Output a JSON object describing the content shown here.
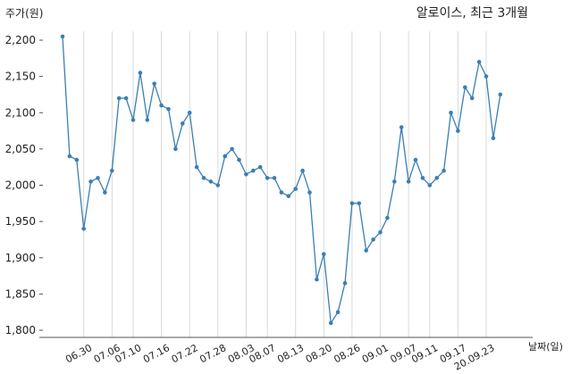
{
  "chart_data": {
    "type": "line",
    "title": "알로이스, 최근 3개월",
    "ylabel": "주가(원)",
    "xlabel": "날짜(일)",
    "ylim": [
      1800,
      2200
    ],
    "yticks": [
      1800,
      1850,
      1900,
      1950,
      2000,
      2050,
      2100,
      2150,
      2200
    ],
    "ytick_labels": [
      "1,800",
      "1,850",
      "1,900",
      "1,950",
      "2,000",
      "2,050",
      "2,100",
      "2,150",
      "2,200"
    ],
    "xtick_labels": [
      "06.30",
      "07.06",
      "07.10",
      "07.16",
      "07.22",
      "07.28",
      "08.03",
      "08.07",
      "08.13",
      "08.20",
      "08.26",
      "09.01",
      "09.07",
      "09.11",
      "09.17",
      "20.09.23"
    ],
    "xtick_indices": [
      3,
      7,
      10,
      14,
      18,
      22,
      26,
      29,
      33,
      37,
      41,
      45,
      49,
      52,
      56,
      60
    ],
    "grid": "vertical",
    "line_color": "#3a7fb5",
    "values": [
      2205,
      2040,
      2035,
      1940,
      2005,
      2010,
      1990,
      2020,
      2120,
      2120,
      2090,
      2155,
      2090,
      2140,
      2110,
      2105,
      2050,
      2085,
      2100,
      2025,
      2010,
      2005,
      2000,
      2040,
      2050,
      2035,
      2015,
      2020,
      2025,
      2010,
      2010,
      1990,
      1985,
      1995,
      2020,
      1990,
      1870,
      1905,
      1810,
      1825,
      1865,
      1975,
      1975,
      1910,
      1925,
      1935,
      1955,
      2005,
      2080,
      2005,
      2035,
      2010,
      2000,
      2010,
      2020,
      2100,
      2075,
      2135,
      2120,
      2170,
      2150,
      2065,
      2125
    ]
  }
}
